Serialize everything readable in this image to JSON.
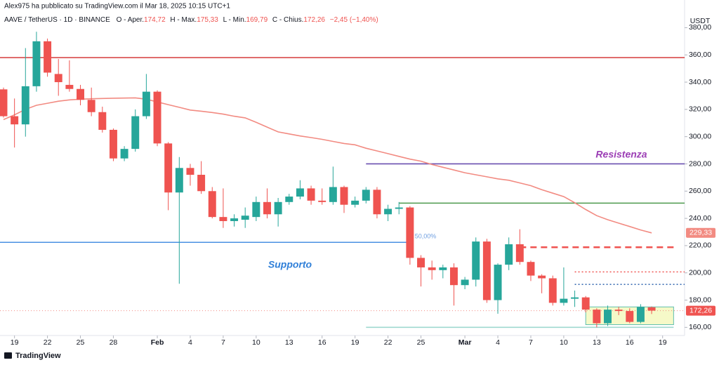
{
  "header": {
    "author_line": "Alex975 ha pubblicato su TradingView.com il Mar 18, 2025 10:15 UTC+1",
    "symbol": "AAVE / TetherUS · 1D · BINANCE",
    "ohlc": [
      {
        "name": "O - Aper.",
        "value": "174,72"
      },
      {
        "name": "H - Max.",
        "value": "175,33"
      },
      {
        "name": "L - Min.",
        "value": "169,79"
      },
      {
        "name": "C - Chius.",
        "value": "172,26"
      }
    ],
    "change": "−2,45 (−1,40%)"
  },
  "brand": "TradingView",
  "chart_data": {
    "type": "candlestick",
    "axis_unit": "USDT",
    "grid": false,
    "x": [
      "2025-01-18",
      "2025-01-19",
      "2025-01-20",
      "2025-01-21",
      "2025-01-22",
      "2025-01-23",
      "2025-01-24",
      "2025-01-25",
      "2025-01-26",
      "2025-01-27",
      "2025-01-28",
      "2025-01-29",
      "2025-01-30",
      "2025-01-31",
      "2025-02-01",
      "2025-02-02",
      "2025-02-03",
      "2025-02-04",
      "2025-02-05",
      "2025-02-06",
      "2025-02-07",
      "2025-02-08",
      "2025-02-09",
      "2025-02-10",
      "2025-02-11",
      "2025-02-12",
      "2025-02-13",
      "2025-02-14",
      "2025-02-15",
      "2025-02-16",
      "2025-02-17",
      "2025-02-18",
      "2025-02-19",
      "2025-02-20",
      "2025-02-21",
      "2025-02-22",
      "2025-02-23",
      "2025-02-24",
      "2025-02-25",
      "2025-02-26",
      "2025-02-27",
      "2025-02-28",
      "2025-03-01",
      "2025-03-02",
      "2025-03-03",
      "2025-03-04",
      "2025-03-05",
      "2025-03-06",
      "2025-03-07",
      "2025-03-08",
      "2025-03-09",
      "2025-03-10",
      "2025-03-11",
      "2025-03-12",
      "2025-03-13",
      "2025-03-14",
      "2025-03-15",
      "2025-03-16",
      "2025-03-17",
      "2025-03-18"
    ],
    "open": [
      334.7,
      315,
      309,
      337,
      370,
      346,
      338,
      335,
      327,
      318,
      305,
      284,
      291,
      315,
      333,
      295,
      259,
      277,
      272,
      260,
      241,
      238,
      239,
      241,
      252,
      243,
      252,
      256,
      262,
      253,
      252,
      263,
      250,
      253,
      261,
      243,
      247,
      248,
      211,
      204,
      202,
      204,
      191,
      195,
      223,
      180,
      206,
      221,
      208,
      198,
      196,
      178,
      181,
      182,
      173,
      163,
      173,
      172,
      164,
      174.72
    ],
    "high": [
      336,
      328,
      365,
      377,
      372,
      357,
      356,
      338,
      336,
      322,
      306,
      293,
      320,
      346,
      334,
      296,
      285,
      280,
      282,
      263,
      262,
      243,
      248,
      256,
      262,
      255,
      258,
      268,
      264,
      262,
      278,
      264,
      256,
      263,
      263,
      250,
      252,
      249,
      213,
      209,
      206,
      207,
      197,
      226,
      225,
      207,
      226,
      232,
      209,
      199,
      198,
      204,
      187,
      183,
      174,
      176,
      175,
      174,
      177,
      175.33
    ],
    "low": [
      314,
      292,
      300,
      333,
      344,
      330,
      333,
      323,
      315,
      303,
      282,
      282,
      289,
      313,
      293,
      246,
      192,
      264,
      258,
      240,
      233,
      234,
      233,
      238,
      240,
      234,
      250,
      254,
      250,
      250,
      250,
      244,
      248,
      251,
      240,
      238,
      243,
      206,
      190,
      195,
      196,
      176,
      188,
      190,
      178,
      170,
      202,
      206,
      194,
      185,
      176,
      176,
      175,
      171,
      160,
      161,
      169,
      163,
      163,
      169.79
    ],
    "close": [
      315,
      309,
      337,
      370,
      347,
      340,
      335,
      327,
      318,
      305,
      284,
      291,
      315,
      333,
      295,
      259,
      277,
      272,
      260,
      241,
      238,
      240,
      242,
      252,
      243,
      252,
      256,
      262,
      253,
      252,
      263,
      250,
      253,
      261,
      243,
      247,
      248,
      211,
      204,
      202,
      204,
      191,
      195,
      223,
      180,
      206,
      221,
      208,
      198,
      196,
      178,
      181,
      182,
      173,
      163,
      173,
      172,
      164,
      175,
      172.26
    ],
    "up_color": "#26a69a",
    "down_color": "#ef5350",
    "ma": {
      "color": "#f28b82",
      "values": [
        312.5,
        316,
        320,
        323,
        324.5,
        326,
        327,
        327.5,
        327.8,
        328,
        328.2,
        328.3,
        328.5,
        327.5,
        325.5,
        323.5,
        321.5,
        319.5,
        318.7,
        317.7,
        316.5,
        315,
        313.8,
        310.5,
        307,
        303.5,
        302,
        300.5,
        299.3,
        298,
        296.5,
        295,
        294,
        291.5,
        289.5,
        287.5,
        285.5,
        283.5,
        282,
        279.5,
        277.5,
        275.5,
        273.5,
        272,
        270.5,
        269,
        268,
        266,
        264,
        261,
        258.5,
        256,
        251.5,
        246.5,
        242,
        239,
        236.5,
        234,
        231.5,
        229.33
      ]
    },
    "levels": [
      {
        "value": 358,
        "color": "#d84a4a",
        "style": "solid"
      },
      {
        "value": 222.4,
        "color": "#4a90e2",
        "style": "solid",
        "to": "2025-02-24"
      },
      {
        "value": 280,
        "color": "#6a4fb0",
        "style": "solid",
        "from": "2025-02-20"
      },
      {
        "value": 251.2,
        "color": "#4d9a4d",
        "style": "solid",
        "from": "2025-02-23"
      },
      {
        "value": 218.8,
        "color": "#ef5350",
        "style": "dashed",
        "from": "2025-03-06",
        "to": "2025-03-20"
      },
      {
        "value": 200.7,
        "color": "#ef5350",
        "style": "dotted",
        "from": "2025-03-11"
      },
      {
        "value": 191.5,
        "color": "#3f6fb5",
        "style": "dotted",
        "from": "2025-03-11"
      },
      {
        "value": 160,
        "color": "#9fd8d0",
        "style": "solid",
        "from": "2025-02-20",
        "to": "2025-03-20"
      },
      {
        "value": 172.26,
        "color": "#f28b82",
        "style": "fine"
      }
    ],
    "box": {
      "from": "2025-03-12",
      "to": "2025-03-20",
      "top": 175,
      "bottom": 162,
      "fill": "#f6f9c8",
      "stroke": "#5fbfae"
    },
    "annotations": {
      "support": "Supporto",
      "resistance": "Resistenza",
      "fib": "50,00%"
    },
    "price_tags": [
      {
        "value": 229.33,
        "label": "229,33",
        "color": "#f28b82"
      },
      {
        "value": 172.26,
        "label": "172,26",
        "color": "#ef5350"
      }
    ],
    "xlim": [
      "2025-01-18",
      "2025-03-21"
    ],
    "xticks": [
      {
        "value": "2025-01-19",
        "label": "19"
      },
      {
        "value": "2025-01-22",
        "label": "22"
      },
      {
        "value": "2025-01-25",
        "label": "25"
      },
      {
        "value": "2025-01-28",
        "label": "28"
      },
      {
        "value": "2025-02-01",
        "label": "Feb"
      },
      {
        "value": "2025-02-04",
        "label": "4"
      },
      {
        "value": "2025-02-07",
        "label": "7"
      },
      {
        "value": "2025-02-10",
        "label": "10"
      },
      {
        "value": "2025-02-13",
        "label": "13"
      },
      {
        "value": "2025-02-16",
        "label": "16"
      },
      {
        "value": "2025-02-19",
        "label": "19"
      },
      {
        "value": "2025-02-22",
        "label": "22"
      },
      {
        "value": "2025-02-25",
        "label": "25"
      },
      {
        "value": "2025-03-01",
        "label": "Mar"
      },
      {
        "value": "2025-03-04",
        "label": "4"
      },
      {
        "value": "2025-03-07",
        "label": "7"
      },
      {
        "value": "2025-03-10",
        "label": "10"
      },
      {
        "value": "2025-03-13",
        "label": "13"
      },
      {
        "value": "2025-03-16",
        "label": "16"
      },
      {
        "value": "2025-03-19",
        "label": "19"
      }
    ],
    "ylim": [
      154,
      390
    ],
    "yticks": [
      {
        "value": 160,
        "label": "160,00"
      },
      {
        "value": 180,
        "label": "180,00"
      },
      {
        "value": 200,
        "label": "200,00"
      },
      {
        "value": 220,
        "label": "220,00"
      },
      {
        "value": 240,
        "label": "240,00"
      },
      {
        "value": 260,
        "label": "260,00"
      },
      {
        "value": 280,
        "label": "280,00"
      },
      {
        "value": 300,
        "label": "300,00"
      },
      {
        "value": 320,
        "label": "320,00"
      },
      {
        "value": 340,
        "label": "340,00"
      },
      {
        "value": 360,
        "label": "360,00"
      },
      {
        "value": 380,
        "label": "380,00"
      }
    ]
  }
}
